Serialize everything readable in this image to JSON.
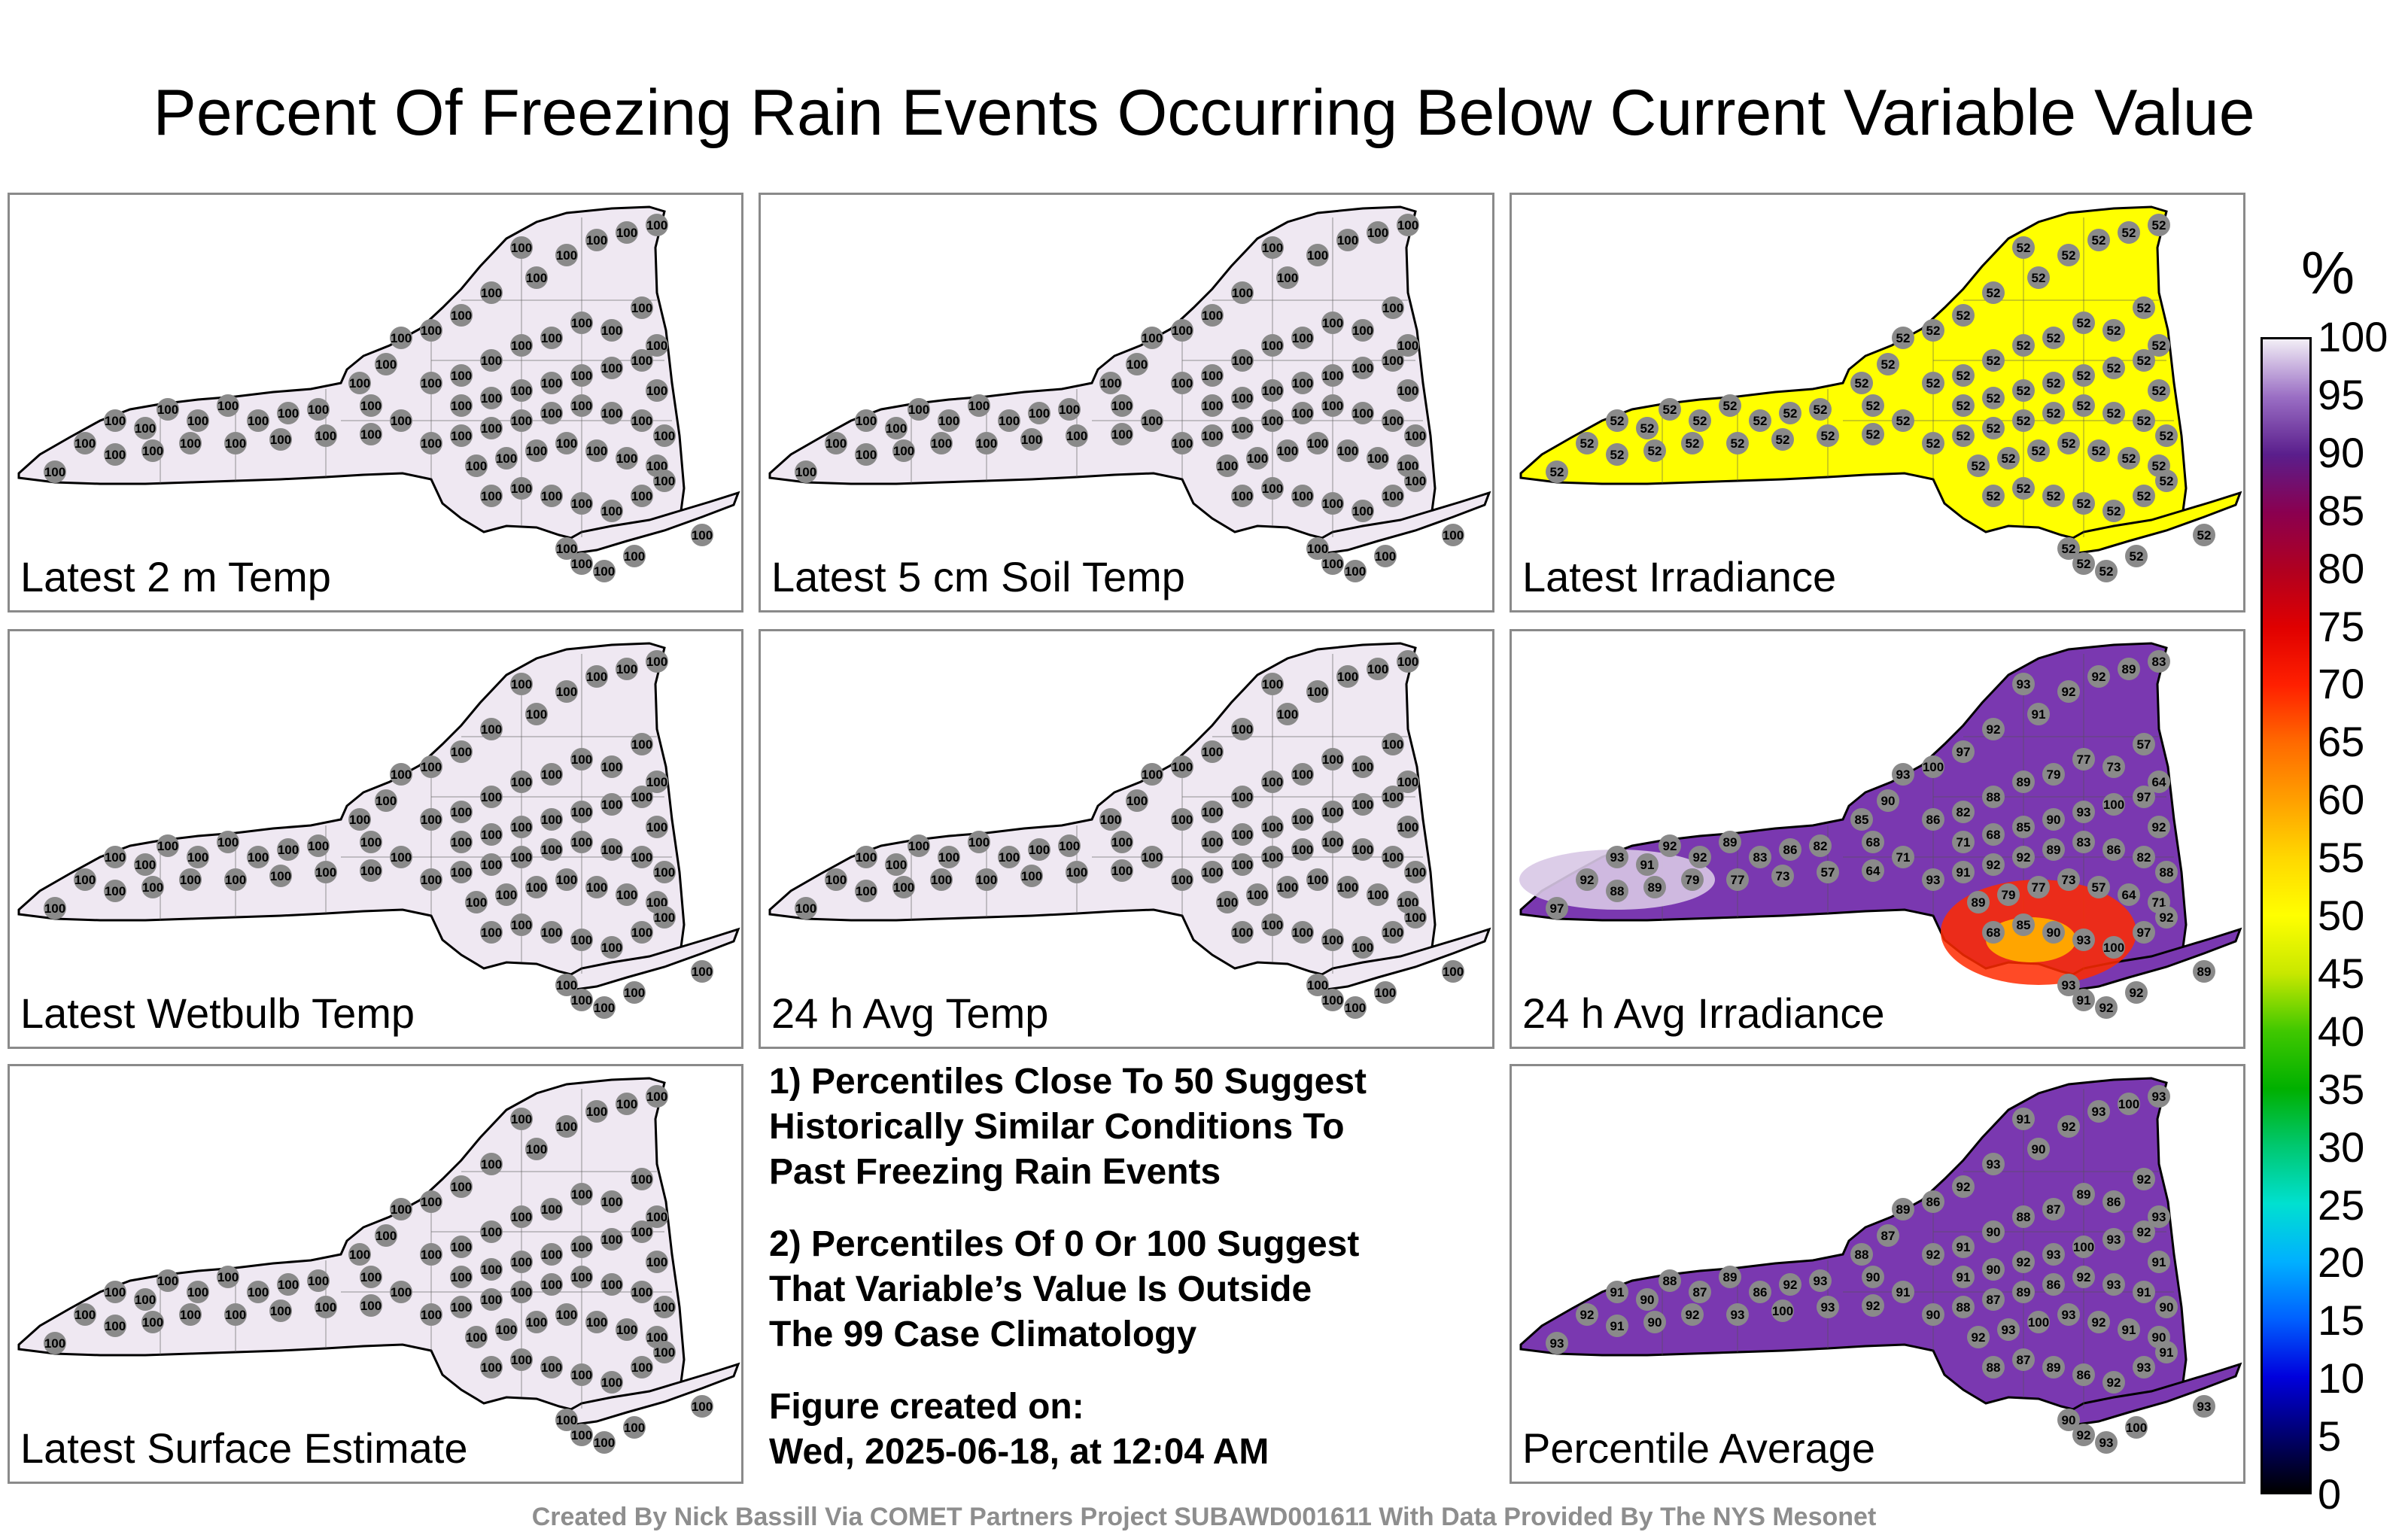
{
  "title": "Percent Of Freezing Rain Events Occurring Below Current Variable Value",
  "footer": "Created By Nick Bassill Via COMET Partners Project SUBAWD001611 With Data Provided By The NYS Mesonet",
  "colors": {
    "full_100": "#efe8f2",
    "irradiance_52": "#ffff00",
    "average_purple": "#7a38b0",
    "dot": "#8a8a8a",
    "hotspot_red": "#ff2a00",
    "hotspot_orange": "#ffa500"
  },
  "panels": [
    {
      "label": "Latest 2 m Temp",
      "fill": "#efe8f2",
      "value": "100"
    },
    {
      "label": "Latest 5 cm Soil Temp",
      "fill": "#efe8f2",
      "value": "100"
    },
    {
      "label": "Latest Irradiance",
      "fill": "#ffff00",
      "value": "52"
    },
    {
      "label": "Latest Wetbulb Temp",
      "fill": "#efe8f2",
      "value": "100"
    },
    {
      "label": "24 h Avg Temp",
      "fill": "#efe8f2",
      "value": "100"
    },
    {
      "label": "24 h Avg Irradiance",
      "fill": "#7a38b0",
      "value": "89",
      "values": [
        "97",
        "92",
        "93",
        "91",
        "92",
        "92",
        "89",
        "83",
        "86",
        "82",
        "88",
        "89",
        "79",
        "77",
        "73",
        "57",
        "64",
        "71",
        "68",
        "85",
        "90",
        "93",
        "100"
      ]
    },
    {
      "label": "Latest Surface Estimate",
      "fill": "#efe8f2",
      "value": "100"
    },
    {
      "label": "Percentile Average",
      "fill": "#7a38b0",
      "value": "92",
      "values": [
        "93",
        "92",
        "91",
        "90",
        "88",
        "87",
        "89",
        "86",
        "92",
        "93",
        "91",
        "90",
        "92",
        "93",
        "100"
      ]
    }
  ],
  "notes": {
    "note1": "1) Percentiles Close To 50 Suggest\nHistorically Similar Conditions To\nPast Freezing Rain Events",
    "note2": "2) Percentiles Of 0 Or 100 Suggest\nThat Variable’s Value Is Outside\nThe 99 Case Climatology",
    "created": "Figure created on:\nWed, 2025-06-18, at 12:04 AM"
  },
  "colorbar": {
    "unit": "%",
    "ticks": [
      "0",
      "5",
      "10",
      "15",
      "20",
      "25",
      "30",
      "35",
      "40",
      "45",
      "50",
      "55",
      "60",
      "65",
      "70",
      "75",
      "80",
      "85",
      "90",
      "95",
      "100"
    ],
    "stops": [
      "#000000",
      "#000070",
      "#0000dd",
      "#0060ff",
      "#00b0ff",
      "#00e0d0",
      "#00c870",
      "#00b000",
      "#40c800",
      "#c8e800",
      "#ffff00",
      "#ffd800",
      "#ffa000",
      "#ff6a00",
      "#ff2000",
      "#e00000",
      "#b00020",
      "#8a0050",
      "#5a1e8c",
      "#9a6ec4",
      "#f2eef6"
    ]
  }
}
